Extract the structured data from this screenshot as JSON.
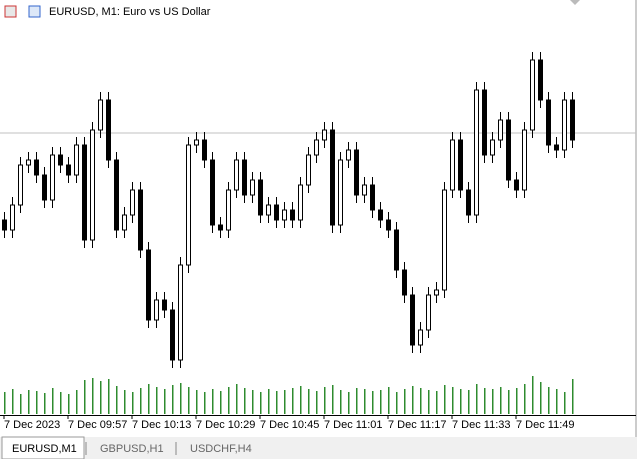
{
  "chart_data": {
    "type": "candlestick",
    "title": "EURUSD, M1:  Euro vs US Dollar",
    "ylim": [
      0,
      360
    ],
    "volume_ylim": [
      0,
      40
    ],
    "current_price": 247,
    "up_color": "#ffffff",
    "down_color": "#000000",
    "volume_color": "#2e8b2e",
    "candles": [
      [
        160,
        168,
        142,
        150
      ],
      [
        150,
        183,
        142,
        175
      ],
      [
        175,
        223,
        167,
        215
      ],
      [
        215,
        228,
        207,
        220
      ],
      [
        220,
        228,
        197,
        205
      ],
      [
        205,
        213,
        172,
        180
      ],
      [
        180,
        233,
        172,
        225
      ],
      [
        225,
        233,
        207,
        215
      ],
      [
        215,
        223,
        197,
        205
      ],
      [
        205,
        243,
        197,
        235
      ],
      [
        235,
        243,
        132,
        140
      ],
      [
        140,
        258,
        132,
        250
      ],
      [
        250,
        288,
        242,
        280
      ],
      [
        280,
        288,
        212,
        220
      ],
      [
        220,
        228,
        142,
        150
      ],
      [
        150,
        173,
        142,
        165
      ],
      [
        165,
        198,
        157,
        190
      ],
      [
        190,
        198,
        122,
        130
      ],
      [
        130,
        138,
        52,
        60
      ],
      [
        60,
        88,
        52,
        80
      ],
      [
        80,
        88,
        62,
        70
      ],
      [
        70,
        78,
        12,
        20
      ],
      [
        20,
        123,
        12,
        115
      ],
      [
        115,
        243,
        107,
        235
      ],
      [
        235,
        248,
        227,
        240
      ],
      [
        240,
        248,
        212,
        220
      ],
      [
        220,
        228,
        147,
        155
      ],
      [
        155,
        163,
        142,
        150
      ],
      [
        150,
        198,
        142,
        190
      ],
      [
        190,
        228,
        182,
        220
      ],
      [
        220,
        228,
        177,
        185
      ],
      [
        185,
        208,
        177,
        200
      ],
      [
        200,
        208,
        157,
        165
      ],
      [
        165,
        183,
        157,
        175
      ],
      [
        175,
        183,
        152,
        160
      ],
      [
        160,
        178,
        152,
        170
      ],
      [
        170,
        178,
        152,
        160
      ],
      [
        160,
        203,
        152,
        195
      ],
      [
        195,
        233,
        187,
        225
      ],
      [
        225,
        248,
        217,
        240
      ],
      [
        240,
        258,
        232,
        250
      ],
      [
        250,
        258,
        147,
        155
      ],
      [
        155,
        228,
        147,
        220
      ],
      [
        220,
        238,
        212,
        230
      ],
      [
        230,
        238,
        177,
        185
      ],
      [
        185,
        203,
        177,
        195
      ],
      [
        195,
        203,
        162,
        170
      ],
      [
        170,
        178,
        152,
        160
      ],
      [
        160,
        168,
        142,
        150
      ],
      [
        150,
        158,
        102,
        110
      ],
      [
        110,
        118,
        77,
        85
      ],
      [
        85,
        93,
        27,
        35
      ],
      [
        35,
        58,
        27,
        50
      ],
      [
        50,
        93,
        42,
        85
      ],
      [
        85,
        98,
        77,
        90
      ],
      [
        90,
        198,
        82,
        190
      ],
      [
        190,
        248,
        182,
        240
      ],
      [
        240,
        248,
        182,
        190
      ],
      [
        190,
        198,
        157,
        165
      ],
      [
        165,
        298,
        157,
        290
      ],
      [
        290,
        298,
        217,
        225
      ],
      [
        225,
        248,
        217,
        240
      ],
      [
        240,
        268,
        232,
        260
      ],
      [
        260,
        268,
        192,
        200
      ],
      [
        200,
        208,
        182,
        190
      ],
      [
        190,
        258,
        182,
        250
      ],
      [
        250,
        328,
        242,
        320
      ],
      [
        320,
        328,
        272,
        280
      ],
      [
        280,
        288,
        227,
        235
      ],
      [
        235,
        243,
        222,
        230
      ],
      [
        230,
        288,
        222,
        280
      ],
      [
        280,
        288,
        232,
        240
      ]
    ],
    "volumes": [
      22,
      25,
      20,
      24,
      23,
      21,
      26,
      22,
      20,
      24,
      34,
      36,
      33,
      35,
      28,
      24,
      22,
      26,
      30,
      27,
      25,
      29,
      31,
      27,
      24,
      22,
      25,
      23,
      27,
      30,
      26,
      24,
      22,
      25,
      23,
      24,
      26,
      28,
      25,
      23,
      27,
      29,
      24,
      22,
      26,
      25,
      23,
      24,
      27,
      22,
      25,
      28,
      26,
      24,
      23,
      29,
      27,
      25,
      24,
      30,
      26,
      25,
      27,
      24,
      26,
      30,
      38,
      32,
      27,
      25,
      22,
      35
    ],
    "time_labels": [
      "7 Dec 2023",
      "7 Dec 09:57",
      "7 Dec 10:13",
      "7 Dec 10:29",
      "7 Dec 10:45",
      "7 Dec 11:01",
      "7 Dec 11:17",
      "7 Dec 11:33",
      "7 Dec 11:49"
    ]
  },
  "tabs": [
    "EURUSD,M1",
    "GBPUSD,H1",
    "USDCHF,H4"
  ]
}
